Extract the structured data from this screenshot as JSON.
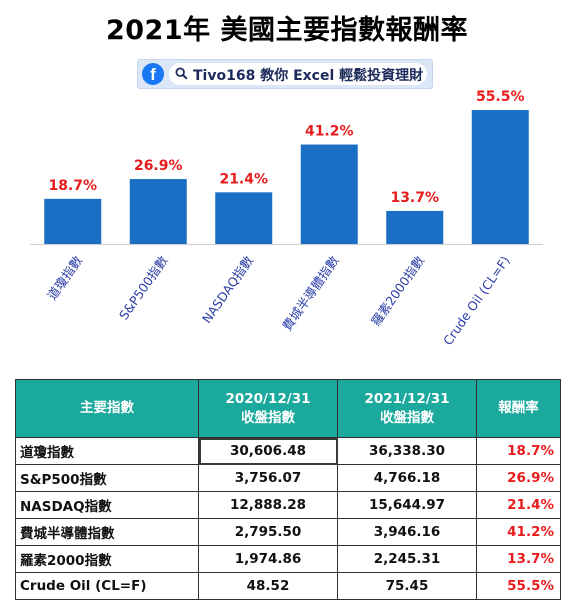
{
  "title": "2021年 美國主要指數報酬率",
  "banner": {
    "text": "Tivo168 教你 Excel 輕鬆投資理財",
    "icon": "facebook-icon",
    "search_icon": "search-icon"
  },
  "colors": {
    "bar": "#1a6fc4",
    "value_label": "#e81c1c",
    "category_label": "#2c3fa8",
    "table_header": "#1aa99c"
  },
  "chart_data": {
    "type": "bar",
    "categories": [
      "道瓊指數",
      "S&P500指數",
      "NASDAQ指數",
      "費城半導體指數",
      "羅素2000指數",
      "Crude Oil (CL=F)"
    ],
    "values": [
      18.7,
      26.9,
      21.4,
      41.2,
      13.7,
      55.5
    ],
    "data_labels": [
      "18.7%",
      "26.9%",
      "21.4%",
      "41.2%",
      "13.7%",
      "55.5%"
    ],
    "title": "",
    "xlabel": "",
    "ylabel": "",
    "ylim": [
      0,
      60
    ],
    "grid": false,
    "legend": "none"
  },
  "table": {
    "headers": [
      "主要指數",
      "2020/12/31\n收盤指數",
      "2021/12/31\n收盤指數",
      "報酬率"
    ],
    "rows": [
      [
        "道瓊指數",
        "30,606.48",
        "36,338.30",
        "18.7%"
      ],
      [
        "S&P500指數",
        "3,756.07",
        "4,766.18",
        "26.9%"
      ],
      [
        "NASDAQ指數",
        "12,888.28",
        "15,644.97",
        "21.4%"
      ],
      [
        "費城半導體指數",
        "2,795.50",
        "3,946.16",
        "41.2%"
      ],
      [
        "羅素2000指數",
        "1,974.86",
        "2,245.31",
        "13.7%"
      ],
      [
        "Crude Oil (CL=F)",
        "48.52",
        "75.45",
        "55.5%"
      ]
    ]
  }
}
